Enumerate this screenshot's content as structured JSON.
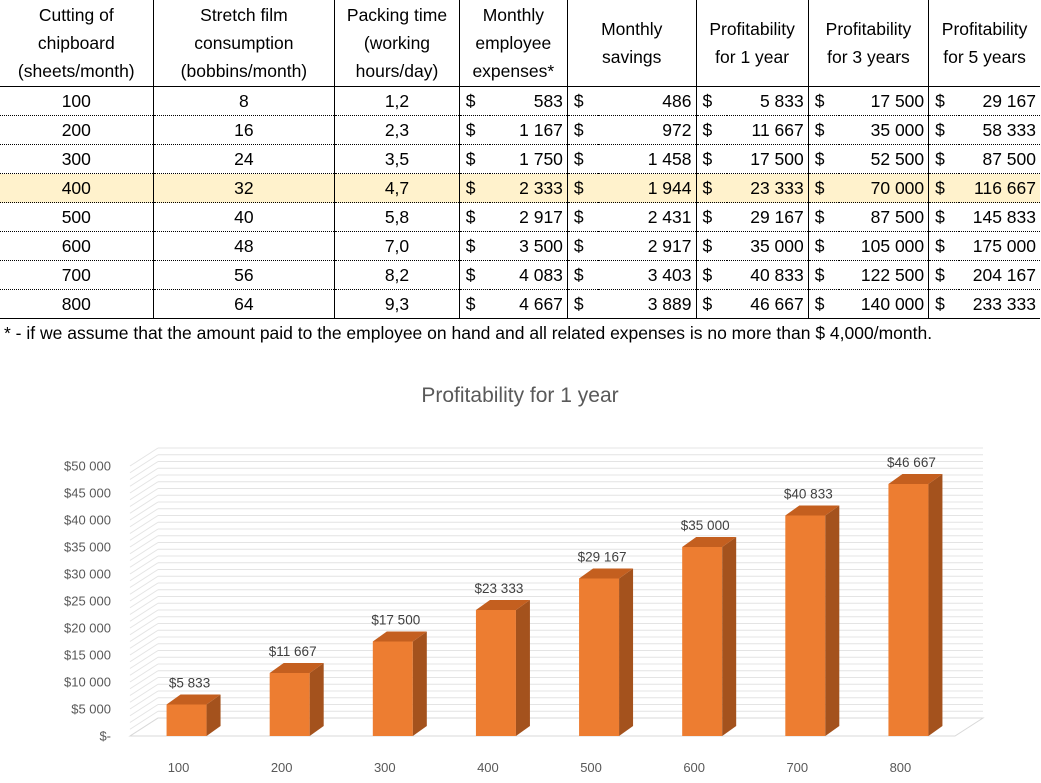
{
  "table": {
    "headers": [
      [
        "Cutting of",
        "chipboard",
        "(sheets/month)"
      ],
      [
        "Stretch film",
        "consumption",
        "(bobbins/month)"
      ],
      [
        "Packing time",
        "(working",
        "hours/day)"
      ],
      [
        "Monthly",
        "employee",
        "expenses*"
      ],
      [
        "Monthly",
        "savings"
      ],
      [
        "Profitability",
        "for 1 year"
      ],
      [
        "Profitability",
        "for 3 years"
      ],
      [
        "Profitability",
        "for 5 years"
      ]
    ],
    "currency": "$",
    "rows": [
      {
        "sheets": "100",
        "bobbins": "8",
        "hours": "1,2",
        "expenses": "583",
        "savings": "486",
        "p1": "5 833",
        "p3": "17 500",
        "p5": "29 167"
      },
      {
        "sheets": "200",
        "bobbins": "16",
        "hours": "2,3",
        "expenses": "1 167",
        "savings": "972",
        "p1": "11 667",
        "p3": "35 000",
        "p5": "58 333"
      },
      {
        "sheets": "300",
        "bobbins": "24",
        "hours": "3,5",
        "expenses": "1 750",
        "savings": "1 458",
        "p1": "17 500",
        "p3": "52 500",
        "p5": "87 500"
      },
      {
        "sheets": "400",
        "bobbins": "32",
        "hours": "4,7",
        "expenses": "2 333",
        "savings": "1 944",
        "p1": "23 333",
        "p3": "70 000",
        "p5": "116 667",
        "highlight": true
      },
      {
        "sheets": "500",
        "bobbins": "40",
        "hours": "5,8",
        "expenses": "2 917",
        "savings": "2 431",
        "p1": "29 167",
        "p3": "87 500",
        "p5": "145 833"
      },
      {
        "sheets": "600",
        "bobbins": "48",
        "hours": "7,0",
        "expenses": "3 500",
        "savings": "2 917",
        "p1": "35 000",
        "p3": "105 000",
        "p5": "175 000"
      },
      {
        "sheets": "700",
        "bobbins": "56",
        "hours": "8,2",
        "expenses": "4 083",
        "savings": "3 403",
        "p1": "40 833",
        "p3": "122 500",
        "p5": "204 167"
      },
      {
        "sheets": "800",
        "bobbins": "64",
        "hours": "9,3",
        "expenses": "4 667",
        "savings": "3 889",
        "p1": "46 667",
        "p3": "140 000",
        "p5": "233 333"
      }
    ],
    "highlight_color": "#fff2cc"
  },
  "footnote": "* - if we assume that the amount paid to the employee on hand and all related expenses is no more than $ 4,000/month.",
  "chart_data": {
    "type": "bar",
    "title": "Profitability for 1 year",
    "categories": [
      "100",
      "200",
      "300",
      "400",
      "500",
      "600",
      "700",
      "800"
    ],
    "values": [
      5833,
      11667,
      17500,
      23333,
      29167,
      35000,
      40833,
      46667
    ],
    "data_labels": [
      "$5 833",
      "$11 667",
      "$17 500",
      "$23 333",
      "$29 167",
      "$35 000",
      "$40 833",
      "$46 667"
    ],
    "yticks": [
      0,
      5000,
      10000,
      15000,
      20000,
      25000,
      30000,
      35000,
      40000,
      45000,
      50000
    ],
    "ytick_labels": [
      "$-",
      "$5 000",
      "$10 000",
      "$15 000",
      "$20 000",
      "$25 000",
      "$30 000",
      "$35 000",
      "$40 000",
      "$45 000",
      "$50 000"
    ],
    "ylim": [
      0,
      50000
    ],
    "xlabel": "",
    "ylabel": "",
    "legend": "none",
    "grid": true,
    "style": "3d-column",
    "bar_color": "#ed7d31",
    "bar_side_color": "#a4521d",
    "bar_top_color": "#c45f1f"
  }
}
